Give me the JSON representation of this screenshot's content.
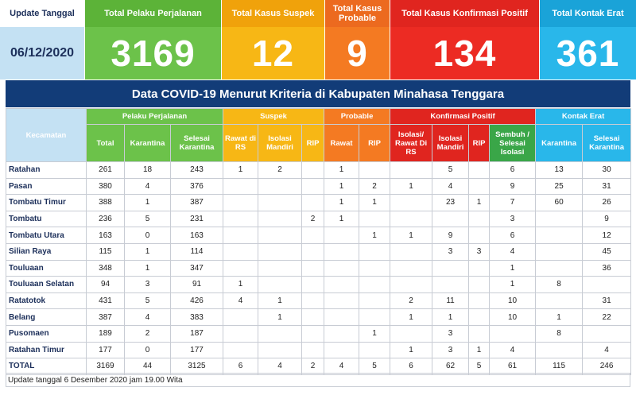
{
  "summary": {
    "update_label": "Update Tanggal",
    "update_date": "06/12/2020",
    "pelaku_label": "Total Pelaku Perjalanan",
    "pelaku_value": "3169",
    "suspek_label": "Total Kasus Suspek",
    "suspek_value": "12",
    "probable_label": "Total Kasus Probable",
    "probable_value": "9",
    "konfirmasi_label": "Total Kasus Konfirmasi Positif",
    "konfirmasi_value": "134",
    "kontak_label": "Total Kontak Erat",
    "kontak_value": "361"
  },
  "title": "Data COVID-19 Menurut Kriteria di Kabupaten Minahasa Tenggara",
  "table": {
    "kecamatan_header": "Kecamatan",
    "groups": {
      "pelaku": "Pelaku Perjalanan",
      "suspek": "Suspek",
      "probable": "Probable",
      "konfirmasi": "Konfirmasi Positif",
      "kontak": "Kontak Erat"
    },
    "subheaders": {
      "total": "Total",
      "karantina": "Karantina",
      "selesai_karantina": "Selesai Karantina",
      "rawat_rs": "Rawat di RS",
      "isolasi_mandiri": "Isolasi Mandiri",
      "rip_suspek": "RIP",
      "rawat": "Rawat",
      "rip_probable": "RIP",
      "isolasi_rawat": "Isolasi/ Rawat Di RS",
      "isolasi_mandiri_konf": "Isolasi Mandiri",
      "rip_konf": "RIP",
      "sembuh": "Sembuh / Selesai Isolasi",
      "karantina_kontak": "Karantina",
      "selesai_karantina_kontak": "Selesai Karantina"
    },
    "rows": [
      {
        "name": "Ratahan",
        "c": [
          "261",
          "18",
          "243",
          "1",
          "2",
          "",
          "1",
          "",
          "",
          "5",
          "",
          "6",
          "13",
          "30"
        ]
      },
      {
        "name": "Pasan",
        "c": [
          "380",
          "4",
          "376",
          "",
          "",
          "",
          "1",
          "2",
          "1",
          "4",
          "",
          "9",
          "25",
          "31"
        ]
      },
      {
        "name": "Tombatu Timur",
        "c": [
          "388",
          "1",
          "387",
          "",
          "",
          "",
          "1",
          "1",
          "",
          "23",
          "1",
          "7",
          "60",
          "26"
        ]
      },
      {
        "name": "Tombatu",
        "c": [
          "236",
          "5",
          "231",
          "",
          "",
          "2",
          "1",
          "",
          "",
          "",
          "",
          "3",
          "",
          "9"
        ]
      },
      {
        "name": "Tombatu Utara",
        "c": [
          "163",
          "0",
          "163",
          "",
          "",
          "",
          "",
          "1",
          "1",
          "9",
          "",
          "6",
          "",
          "12"
        ]
      },
      {
        "name": "Silian Raya",
        "c": [
          "115",
          "1",
          "114",
          "",
          "",
          "",
          "",
          "",
          "",
          "3",
          "3",
          "4",
          "",
          "45"
        ]
      },
      {
        "name": "Touluaan",
        "c": [
          "348",
          "1",
          "347",
          "",
          "",
          "",
          "",
          "",
          "",
          "",
          "",
          "1",
          "",
          "36"
        ]
      },
      {
        "name": "Touluaan Selatan",
        "c": [
          "94",
          "3",
          "91",
          "1",
          "",
          "",
          "",
          "",
          "",
          "",
          "",
          "1",
          "8",
          ""
        ]
      },
      {
        "name": "Ratatotok",
        "c": [
          "431",
          "5",
          "426",
          "4",
          "1",
          "",
          "",
          "",
          "2",
          "11",
          "",
          "10",
          "",
          "31"
        ]
      },
      {
        "name": "Belang",
        "c": [
          "387",
          "4",
          "383",
          "",
          "1",
          "",
          "",
          "",
          "1",
          "1",
          "",
          "10",
          "1",
          "22"
        ]
      },
      {
        "name": "Pusomaen",
        "c": [
          "189",
          "2",
          "187",
          "",
          "",
          "",
          "",
          "1",
          "",
          "3",
          "",
          "",
          "8",
          ""
        ]
      },
      {
        "name": "Ratahan Timur",
        "c": [
          "177",
          "0",
          "177",
          "",
          "",
          "",
          "",
          "",
          "1",
          "3",
          "1",
          "4",
          "",
          "4"
        ]
      }
    ],
    "total": {
      "name": "TOTAL",
      "c": [
        "3169",
        "44",
        "3125",
        "6",
        "4",
        "2",
        "4",
        "5",
        "6",
        "62",
        "5",
        "61",
        "115",
        "246"
      ]
    }
  },
  "footer_note": "Update tanggal 6 Desember 2020 jam 19.00 Wita"
}
